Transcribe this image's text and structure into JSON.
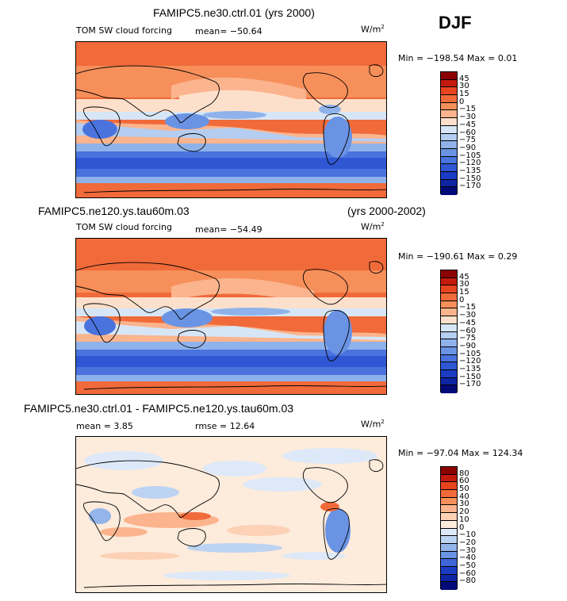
{
  "season": "DJF",
  "units_base": "W/m",
  "units_exp": "2",
  "panels": [
    {
      "header": "FAMIPC5.ne30.ctrl.01 (yrs 2000)",
      "header_right": "",
      "variable": "TOM SW cloud forcing",
      "mean_text": "mean= −50.64",
      "rmse_text": "",
      "minmax_text": "Min = −198.54  Max =     0.01",
      "colorbar": {
        "colors": [
          "#8b0000",
          "#c41a0e",
          "#e8441f",
          "#f06a3a",
          "#f78f5a",
          "#fbb48d",
          "#fde0cb",
          "#d6e6f7",
          "#b5cdf0",
          "#8fb2ea",
          "#6a93e4",
          "#4a73de",
          "#2f57d3",
          "#1a3cc2",
          "#0d24a3",
          "#020a78"
        ],
        "labels": [
          "45",
          "30",
          "15",
          "0",
          "−15",
          "−30",
          "−45",
          "−60",
          "−75",
          "−90",
          "−105",
          "−120",
          "−135",
          "−150",
          "−170"
        ]
      }
    },
    {
      "header": "FAMIPC5.ne120.ys.tau60m.03",
      "header_right": "(yrs 2000-2002)",
      "variable": "TOM SW cloud forcing",
      "mean_text": "mean= −54.49",
      "rmse_text": "",
      "minmax_text": "Min = −190.61  Max =    0.29",
      "colorbar": {
        "colors": [
          "#8b0000",
          "#c41a0e",
          "#e8441f",
          "#f06a3a",
          "#f78f5a",
          "#fbb48d",
          "#fde0cb",
          "#d6e6f7",
          "#b5cdf0",
          "#8fb2ea",
          "#6a93e4",
          "#4a73de",
          "#2f57d3",
          "#1a3cc2",
          "#0d24a3",
          "#020a78"
        ],
        "labels": [
          "45",
          "30",
          "15",
          "0",
          "−15",
          "−30",
          "−45",
          "−60",
          "−75",
          "−90",
          "−105",
          "−120",
          "−135",
          "−150",
          "−170"
        ]
      }
    },
    {
      "header": "FAMIPC5.ne30.ctrl.01 - FAMIPC5.ne120.ys.tau60m.03",
      "header_right": "",
      "variable": "",
      "mean_text": "mean =    3.85",
      "rmse_text": "rmse =  12.64",
      "minmax_text": "Min = −97.04 Max = 124.34",
      "colorbar": {
        "colors": [
          "#8b0000",
          "#c41a0e",
          "#e8441f",
          "#f06a3a",
          "#f78f5a",
          "#fbb48d",
          "#fcd1b5",
          "#fdebdc",
          "#dde9f8",
          "#bcd3f2",
          "#94b5ea",
          "#6a93e4",
          "#3f66d8",
          "#1a3cc2",
          "#0d24a3",
          "#020a78"
        ],
        "labels": [
          "80",
          "60",
          "50",
          "40",
          "30",
          "20",
          "10",
          "0",
          "−10",
          "−20",
          "−30",
          "−40",
          "−50",
          "−60",
          "−80"
        ]
      }
    }
  ]
}
